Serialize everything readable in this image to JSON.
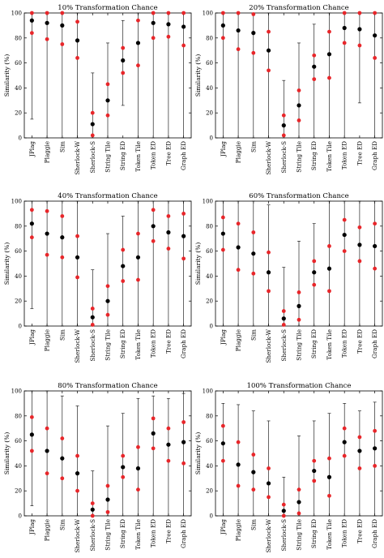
{
  "chart_data": [
    {
      "type": "scatter",
      "title": "10% Transformation Chance",
      "ylabel": "Similarity (%)",
      "ylim": [
        0,
        100
      ],
      "yticks": [
        0,
        20,
        40,
        60,
        80,
        100
      ],
      "categories": [
        "JPlag",
        "Plaggie",
        "Sim",
        "Sherlock-W",
        "Sherlock-S",
        "String Tile",
        "String ED",
        "Token Tile",
        "Token ED",
        "Tree ED",
        "Graph ED"
      ],
      "series": [
        {
          "stat": "mean",
          "color": "#000000",
          "values": [
            94,
            92,
            90,
            78,
            11,
            30,
            62,
            76,
            92,
            91,
            89
          ]
        },
        {
          "stat": "upper",
          "color": "#e8262a",
          "values": [
            100,
            100,
            100,
            93,
            20,
            43,
            72,
            94,
            100,
            100,
            100
          ]
        },
        {
          "stat": "lower",
          "color": "#e8262a",
          "values": [
            84,
            79,
            75,
            64,
            2,
            18,
            52,
            58,
            80,
            81,
            74
          ]
        },
        {
          "stat": "max",
          "values": [
            100,
            100,
            100,
            100,
            52,
            76,
            94,
            100,
            100,
            100,
            100
          ]
        },
        {
          "stat": "min",
          "values": [
            15,
            0,
            0,
            0,
            0,
            0,
            26,
            0,
            0,
            0,
            0
          ]
        }
      ]
    },
    {
      "type": "scatter",
      "title": "20% Transformation Chance",
      "ylabel": "Similarity (%)",
      "ylim": [
        0,
        100
      ],
      "yticks": [
        0,
        20,
        40,
        60,
        80,
        100
      ],
      "categories": [
        "JPlag",
        "Plaggie",
        "Sim",
        "Sherlock-W",
        "Sherlock-S",
        "String Tile",
        "String ED",
        "Token Tile",
        "Token ED",
        "Tree ED",
        "Graph ED"
      ],
      "series": [
        {
          "stat": "mean",
          "color": "#000000",
          "values": [
            90,
            86,
            84,
            70,
            10,
            26,
            57,
            67,
            88,
            87,
            82
          ]
        },
        {
          "stat": "upper",
          "color": "#e8262a",
          "values": [
            100,
            100,
            99,
            85,
            18,
            38,
            66,
            85,
            100,
            100,
            100
          ]
        },
        {
          "stat": "lower",
          "color": "#e8262a",
          "values": [
            80,
            71,
            68,
            54,
            2,
            14,
            47,
            48,
            76,
            74,
            64
          ]
        },
        {
          "stat": "max",
          "values": [
            100,
            100,
            100,
            100,
            46,
            76,
            91,
            100,
            100,
            100,
            100
          ]
        },
        {
          "stat": "min",
          "values": [
            0,
            0,
            0,
            0,
            0,
            0,
            0,
            0,
            0,
            28,
            0
          ]
        }
      ]
    },
    {
      "type": "scatter",
      "title": "40% Transformation Chance",
      "ylabel": "Similarity (%)",
      "ylim": [
        0,
        100
      ],
      "yticks": [
        0,
        20,
        40,
        60,
        80,
        100
      ],
      "categories": [
        "JPlag",
        "Plaggie",
        "Sim",
        "Sherlock-W",
        "Sherlock-S",
        "String Tile",
        "String ED",
        "Token Tile",
        "Token ED",
        "Tree ED",
        "Graph ED"
      ],
      "series": [
        {
          "stat": "mean",
          "color": "#000000",
          "values": [
            82,
            74,
            71,
            55,
            7,
            20,
            48,
            55,
            80,
            75,
            72
          ]
        },
        {
          "stat": "upper",
          "color": "#e8262a",
          "values": [
            93,
            92,
            88,
            72,
            14,
            32,
            61,
            74,
            93,
            88,
            90
          ]
        },
        {
          "stat": "lower",
          "color": "#e8262a",
          "values": [
            71,
            57,
            55,
            39,
            1,
            9,
            36,
            37,
            68,
            62,
            54
          ]
        },
        {
          "stat": "max",
          "values": [
            100,
            100,
            100,
            100,
            45,
            74,
            88,
            100,
            100,
            100,
            100
          ]
        },
        {
          "stat": "min",
          "values": [
            14,
            0,
            0,
            0,
            0,
            0,
            0,
            0,
            0,
            0,
            0
          ]
        }
      ]
    },
    {
      "type": "scatter",
      "title": "60% Transformation Chance",
      "ylabel": "Similarity (%)",
      "ylim": [
        0,
        100
      ],
      "yticks": [
        0,
        20,
        40,
        60,
        80,
        100
      ],
      "categories": [
        "JPlag",
        "Plaggie",
        "Sim",
        "Sherlock-W",
        "Sherlock-S",
        "String Tile",
        "String ED",
        "Token Tile",
        "Token ED",
        "Tree ED",
        "Graph ED"
      ],
      "series": [
        {
          "stat": "mean",
          "color": "#000000",
          "values": [
            74,
            63,
            58,
            43,
            6,
            16,
            43,
            46,
            73,
            65,
            64
          ]
        },
        {
          "stat": "upper",
          "color": "#e8262a",
          "values": [
            87,
            82,
            75,
            59,
            12,
            27,
            52,
            64,
            85,
            79,
            82
          ]
        },
        {
          "stat": "lower",
          "color": "#e8262a",
          "values": [
            61,
            45,
            42,
            28,
            1,
            5,
            33,
            28,
            60,
            52,
            46
          ]
        },
        {
          "stat": "max",
          "values": [
            100,
            100,
            100,
            97,
            47,
            68,
            82,
            100,
            100,
            100,
            100
          ]
        },
        {
          "stat": "min",
          "values": [
            0,
            0,
            0,
            0,
            0,
            0,
            0,
            0,
            0,
            0,
            0
          ]
        }
      ]
    },
    {
      "type": "scatter",
      "title": "80% Transformation Chance",
      "ylabel": "Similarity (%)",
      "ylim": [
        0,
        100
      ],
      "yticks": [
        0,
        20,
        40,
        60,
        80,
        100
      ],
      "categories": [
        "JPlag",
        "Plaggie",
        "Sim",
        "Sherlock-W",
        "Sherlock-S",
        "String Tile",
        "String ED",
        "Token Tile",
        "Token ED",
        "Tree ED",
        "Graph ED"
      ],
      "series": [
        {
          "stat": "mean",
          "color": "#000000",
          "values": [
            65,
            52,
            46,
            34,
            5,
            13,
            39,
            38,
            66,
            57,
            59
          ]
        },
        {
          "stat": "upper",
          "color": "#e8262a",
          "values": [
            79,
            70,
            62,
            48,
            10,
            24,
            48,
            55,
            78,
            70,
            75
          ]
        },
        {
          "stat": "lower",
          "color": "#e8262a",
          "values": [
            52,
            34,
            30,
            20,
            0,
            3,
            31,
            21,
            54,
            44,
            42
          ]
        },
        {
          "stat": "max",
          "values": [
            100,
            100,
            96,
            88,
            36,
            72,
            82,
            94,
            96,
            94,
            98
          ]
        },
        {
          "stat": "min",
          "values": [
            8,
            0,
            0,
            0,
            0,
            0,
            0,
            0,
            0,
            0,
            0
          ]
        }
      ]
    },
    {
      "type": "scatter",
      "title": "100% Transformation Chance",
      "ylabel": "Similarity (%)",
      "ylim": [
        0,
        100
      ],
      "yticks": [
        0,
        20,
        40,
        60,
        80,
        100
      ],
      "categories": [
        "JPlag",
        "Plaggie",
        "Sim",
        "Sherlock-W",
        "Sherlock-S",
        "String Tile",
        "String ED",
        "Token Tile",
        "Token ED",
        "Tree ED",
        "Graph ED"
      ],
      "series": [
        {
          "stat": "mean",
          "color": "#000000",
          "values": [
            58,
            41,
            35,
            26,
            4,
            11,
            36,
            31,
            59,
            52,
            54
          ]
        },
        {
          "stat": "upper",
          "color": "#e8262a",
          "values": [
            72,
            59,
            49,
            38,
            9,
            21,
            44,
            46,
            70,
            63,
            68
          ]
        },
        {
          "stat": "lower",
          "color": "#e8262a",
          "values": [
            44,
            24,
            21,
            15,
            0,
            2,
            28,
            16,
            48,
            38,
            40
          ]
        },
        {
          "stat": "max",
          "values": [
            90,
            89,
            84,
            76,
            31,
            64,
            76,
            82,
            90,
            84,
            91
          ]
        },
        {
          "stat": "min",
          "values": [
            0,
            0,
            0,
            0,
            0,
            0,
            0,
            0,
            0,
            0,
            0
          ]
        }
      ]
    }
  ]
}
